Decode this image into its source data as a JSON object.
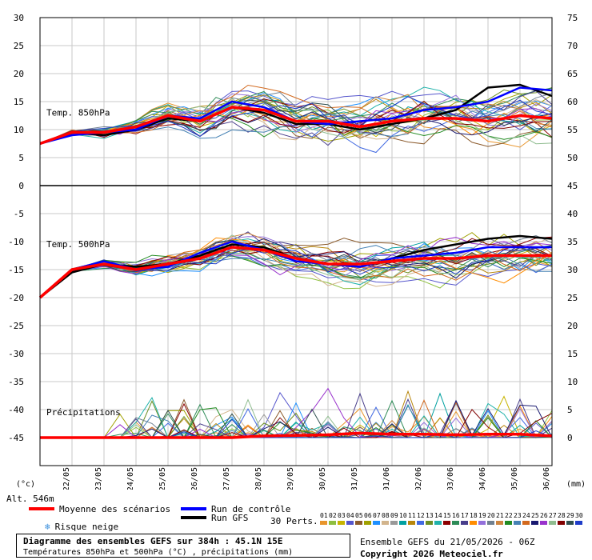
{
  "chart_data": {
    "type": "line",
    "x": [
      "22/05",
      "23/05",
      "24/05",
      "25/05",
      "26/05",
      "27/05",
      "28/05",
      "29/05",
      "30/05",
      "31/05",
      "01/06",
      "02/06",
      "03/06",
      "04/06",
      "05/06",
      "06/06"
    ],
    "left_yticks": [
      30,
      25,
      20,
      15,
      10,
      5,
      0,
      -5,
      -10,
      -15,
      -20,
      -25,
      -30,
      -35,
      -40,
      -45
    ],
    "right_yticks": [
      75,
      70,
      65,
      60,
      55,
      50,
      45,
      40,
      35,
      30,
      25,
      20,
      15,
      10,
      5,
      0
    ],
    "ylim_left": [
      -50,
      30
    ],
    "ylim_right": [
      -5,
      75
    ],
    "grid": true,
    "panels": [
      {
        "label": "Temp. 850hPa",
        "unit": "°C"
      },
      {
        "label": "Temp. 500hPa",
        "unit": "°C"
      },
      {
        "label": "Précipitations",
        "unit": "mm"
      }
    ],
    "series": [
      {
        "name": "Moyenne des scénarios",
        "color": "#ff0000",
        "t850": [
          7.5,
          9.5,
          9.5,
          10.5,
          12.5,
          11.5,
          14.0,
          13.5,
          11.5,
          11.5,
          10.5,
          11.5,
          12.0,
          12.0,
          11.5,
          12.5,
          12.0
        ],
        "t500": [
          -20,
          -15,
          -14,
          -15,
          -14,
          -13,
          -11,
          -11.5,
          -13,
          -14,
          -14,
          -13.5,
          -13,
          -13,
          -12.5,
          -12.5,
          -12.5
        ],
        "precip": [
          0,
          0,
          0,
          0,
          0,
          0,
          0,
          0.3,
          0.4,
          0.5,
          0.8,
          0.6,
          0.6,
          0.5,
          0.6,
          0.6,
          0.3
        ]
      },
      {
        "name": "Run de contrôle",
        "color": "#0000ff",
        "t850": [
          7.5,
          9,
          9.5,
          10,
          12.5,
          12,
          15,
          14,
          11.5,
          11,
          11.5,
          12,
          13.5,
          14,
          15,
          17.5,
          17
        ],
        "t500": [
          -20,
          -15,
          -13.5,
          -15,
          -14.5,
          -12,
          -10,
          -11.5,
          -13.5,
          -14,
          -14.5,
          -13,
          -12.5,
          -12,
          -11,
          -11,
          -11
        ],
        "precip": []
      },
      {
        "name": "Run GFS",
        "color": "#000000",
        "t850": [
          7.5,
          9.5,
          9,
          10,
          12,
          11.5,
          14,
          13,
          11,
          11,
          10,
          11,
          12,
          13.5,
          17.5,
          18,
          16
        ],
        "t500": [
          -20,
          -15.5,
          -14,
          -14.5,
          -14,
          -12.5,
          -10.5,
          -11,
          -13,
          -14,
          -14.5,
          -13,
          -11.5,
          -10.5,
          -9.5,
          -9,
          -9.5
        ],
        "precip": []
      }
    ]
  },
  "axis": {
    "unit_left": "(°c)",
    "unit_right": "(mm)",
    "altitude": "Alt. 546m"
  },
  "legend": {
    "mean": "Moyenne des scénarios",
    "control": "Run de contrôle",
    "gfs": "Run GFS",
    "snow": "Risque neige",
    "perts": "30 Perts.",
    "pert_numbers": [
      "01",
      "02",
      "03",
      "04",
      "05",
      "06",
      "07",
      "08",
      "09",
      "10",
      "11",
      "12",
      "13",
      "14",
      "15",
      "16",
      "17",
      "18",
      "19",
      "20",
      "21",
      "22",
      "23",
      "24",
      "25",
      "26",
      "27",
      "28",
      "29",
      "30"
    ],
    "pert_colors": [
      "#e8952c",
      "#8fbf3f",
      "#c8b400",
      "#5555cc",
      "#8b5a2b",
      "#a0a000",
      "#1e90ff",
      "#d2b48c",
      "#999999",
      "#00a0a0",
      "#b8860b",
      "#4169e1",
      "#6b8e23",
      "#20b2aa",
      "#8b0000",
      "#2e8b57",
      "#483d8b",
      "#ff8c00",
      "#9370db",
      "#708090",
      "#cd853f",
      "#228b22",
      "#4682b4",
      "#d2691e",
      "#191970",
      "#9932cc",
      "#8fbc8f",
      "#800000",
      "#2f4f4f",
      "#1e3cc8"
    ]
  },
  "footer": {
    "title": "Diagramme des ensembles GEFS sur 384h : 45.1N 15E",
    "subtitle": "Températures 850hPa et 500hPa (°C) , précipitations (mm)",
    "run": "Ensemble GEFS du 21/05/2026 - 06Z",
    "copyright": "Copyright 2026 Meteociel.fr"
  }
}
